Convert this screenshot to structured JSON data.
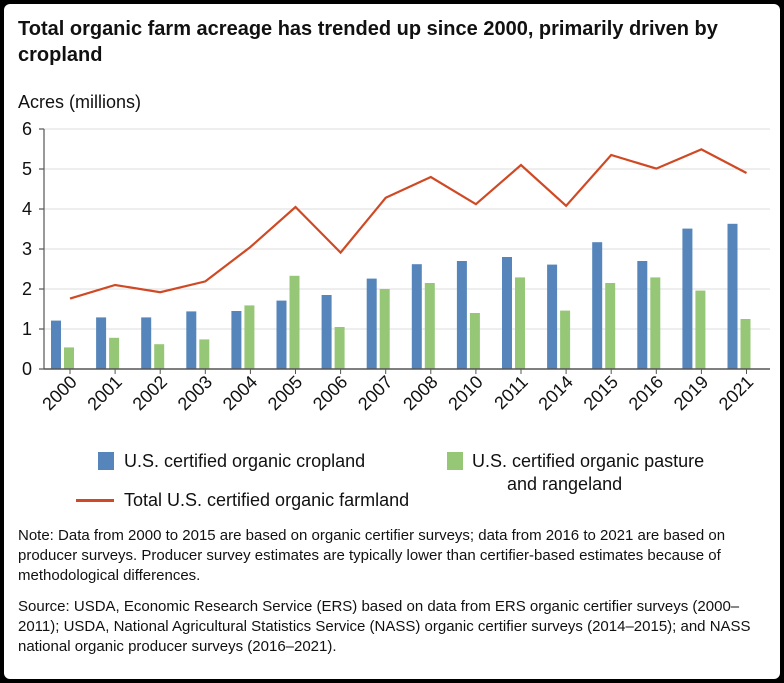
{
  "chart_data": {
    "type": "bar",
    "title": "Total organic farm acreage has trended up since 2000, primarily driven by cropland",
    "ylabel": "Acres (millions)",
    "xlabel": "",
    "ylim": [
      0,
      6
    ],
    "yticks": [
      "0",
      "1",
      "2",
      "3",
      "4",
      "5",
      "6"
    ],
    "grid": true,
    "categories": [
      "2000",
      "2001",
      "2002",
      "2003",
      "2004",
      "2005",
      "2006",
      "2007",
      "2008",
      "2010",
      "2011",
      "2014",
      "2015",
      "2016",
      "2019",
      "2021"
    ],
    "series": [
      {
        "name": "U.S. certified organic cropland",
        "type": "bar",
        "color": "#5585ba",
        "values": [
          1.21,
          1.29,
          1.29,
          1.44,
          1.45,
          1.71,
          1.85,
          2.26,
          2.62,
          2.7,
          2.8,
          2.61,
          3.17,
          2.7,
          3.51,
          3.63
        ]
      },
      {
        "name": "U.S. certified organic pasture and rangeland",
        "type": "bar",
        "color": "#96c777",
        "values": [
          0.54,
          0.78,
          0.62,
          0.74,
          1.59,
          2.33,
          1.05,
          2.0,
          2.15,
          1.4,
          2.29,
          1.46,
          2.15,
          2.29,
          1.96,
          1.25
        ]
      },
      {
        "name": "Total U.S. certified organic farmland",
        "type": "line",
        "color": "#cf4a24",
        "values": [
          1.76,
          2.1,
          1.92,
          2.19,
          3.05,
          4.05,
          2.91,
          4.28,
          4.8,
          4.12,
          5.1,
          4.08,
          5.35,
          5.01,
          5.49,
          4.9
        ]
      }
    ],
    "legend": {
      "placement": "bottom",
      "cropland": "U.S. certified organic cropland",
      "pasture_line1": "U.S. certified organic pasture",
      "pasture_line2": "and rangeland",
      "total": "Total U.S. certified organic farmland"
    }
  },
  "note": "Note: Data from 2000 to 2015 are based on organic certifier surveys; data from 2016 to 2021 are based on producer surveys. Producer survey estimates are typically lower than certifier-based estimates because of methodological differences.",
  "source": "Source: USDA, Economic Research Service (ERS) based on data from ERS organic certifier surveys (2000–2011); USDA, National Agricultural Statistics Service (NASS) organic certifier surveys (2014–2015); and NASS national organic producer surveys (2016–2021)."
}
